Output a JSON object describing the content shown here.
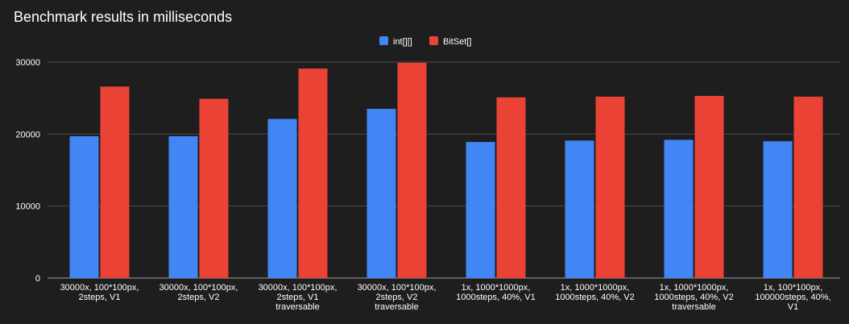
{
  "chart_data": {
    "type": "bar",
    "title": "Benchmark results in milliseconds",
    "xlabel": "",
    "ylabel": "",
    "ylim": [
      0,
      30000
    ],
    "yticks": [
      0,
      10000,
      20000,
      30000
    ],
    "grid": true,
    "legend_position": "top-center",
    "categories": [
      [
        "30000x, 100*100px,",
        "2steps, V1"
      ],
      [
        "30000x, 100*100px,",
        "2steps, V2"
      ],
      [
        "30000x, 100*100px,",
        "2steps, V1",
        "traversable"
      ],
      [
        "30000x, 100*100px,",
        "2steps, V2",
        "traversable"
      ],
      [
        "1x, 1000*1000px,",
        "1000steps, 40%, V1"
      ],
      [
        "1x, 1000*1000px,",
        "1000steps, 40%, V2"
      ],
      [
        "1x, 1000*1000px,",
        "1000steps, 40%, V2",
        "traversable"
      ],
      [
        "1x, 100*100px,",
        "100000steps, 40%,",
        "V1"
      ]
    ],
    "series": [
      {
        "name": "int[][]",
        "color": "#4285f4",
        "values": [
          19700,
          19700,
          22100,
          23500,
          18900,
          19100,
          19200,
          19000
        ]
      },
      {
        "name": "BitSet[]",
        "color": "#ea4335",
        "values": [
          26600,
          24900,
          29100,
          29900,
          25100,
          25200,
          25300,
          25200
        ]
      }
    ]
  }
}
